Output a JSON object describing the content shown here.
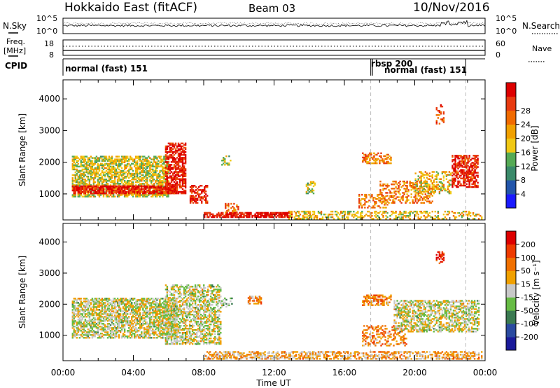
{
  "header": {
    "station": "Hokkaido East (fitACF)",
    "beam": "Beam 03",
    "date": "10/Nov/2016"
  },
  "noise_panel": {
    "left_label": "N.Sky",
    "right_label": "N.Search",
    "y_top_left": "10^5",
    "y_bottom_left": "10^0",
    "y_top_right": "10^5",
    "y_bottom_right": "10^0"
  },
  "freq_panel": {
    "left_label_line1": "Freq.",
    "left_label_line2": "[MHz]",
    "right_label": "Nave",
    "left_ticks": [
      "18",
      "8"
    ],
    "right_ticks": [
      "60",
      "0"
    ]
  },
  "cpid_panel": {
    "label": "CPID",
    "modes": [
      {
        "name": "normal (fast) 151",
        "start": 0.0,
        "end": 17.5
      },
      {
        "name": "rbsp 200",
        "start": 17.5,
        "end": 17.6
      },
      {
        "name": "normal (fast) 151",
        "start": 17.6,
        "end": 22.9
      }
    ]
  },
  "x_axis": {
    "label": "Time UT",
    "ticks": [
      "00:00",
      "04:00",
      "08:00",
      "12:00",
      "16:00",
      "20:00",
      "00:00"
    ]
  },
  "colors": {
    "frame": "#000000",
    "mode_boundary": "#aaaaaa"
  },
  "chart_data": [
    {
      "type": "heatmap",
      "title": "",
      "xlabel": "Time UT",
      "ylabel": "Slant Range [km]",
      "xlim_hours": [
        0,
        24
      ],
      "ylim_km": [
        180,
        4600
      ],
      "y_ticks": [
        "1000",
        "2000",
        "3000",
        "4000"
      ],
      "colorbar": {
        "label": "Power [dB]",
        "ticks": [
          "4",
          "8",
          "12",
          "16",
          "20",
          "24",
          "28"
        ],
        "colors": [
          "#1a1aff",
          "#2255aa",
          "#3a8a6a",
          "#55aa55",
          "#f0c814",
          "#f0a000",
          "#f06a00",
          "#e83a10",
          "#dd0000"
        ]
      },
      "echo_regions": [
        {
          "t0": 0.5,
          "t1": 6.0,
          "r0": 900,
          "r1": 2200,
          "level": 0.5,
          "density": 0.65
        },
        {
          "t0": 0.5,
          "t1": 6.5,
          "r0": 1000,
          "r1": 1250,
          "level": 0.92,
          "density": 0.8
        },
        {
          "t0": 5.8,
          "t1": 7.0,
          "r0": 1000,
          "r1": 2600,
          "level": 0.92,
          "density": 0.65
        },
        {
          "t0": 7.2,
          "t1": 8.2,
          "r0": 700,
          "r1": 1250,
          "level": 0.88,
          "density": 0.6
        },
        {
          "t0": 8.0,
          "t1": 13.0,
          "r0": 250,
          "r1": 420,
          "level": 0.95,
          "density": 0.75
        },
        {
          "t0": 9.2,
          "t1": 10.0,
          "r0": 400,
          "r1": 700,
          "level": 0.75,
          "density": 0.5
        },
        {
          "t0": 12.8,
          "t1": 23.8,
          "r0": 200,
          "r1": 450,
          "level": 0.55,
          "density": 0.4
        },
        {
          "t0": 16.8,
          "t1": 18.4,
          "r0": 550,
          "r1": 1000,
          "level": 0.7,
          "density": 0.35
        },
        {
          "t0": 18.0,
          "t1": 21.0,
          "r0": 700,
          "r1": 1400,
          "level": 0.7,
          "density": 0.4
        },
        {
          "t0": 17.0,
          "t1": 18.6,
          "r0": 1950,
          "r1": 2300,
          "level": 0.7,
          "density": 0.55
        },
        {
          "t0": 20.0,
          "t1": 22.0,
          "r0": 1000,
          "r1": 1700,
          "level": 0.55,
          "density": 0.45
        },
        {
          "t0": 22.1,
          "t1": 23.6,
          "r0": 1200,
          "r1": 2200,
          "level": 0.88,
          "density": 0.6
        },
        {
          "t0": 9.0,
          "t1": 9.6,
          "r0": 1900,
          "r1": 2200,
          "level": 0.45,
          "density": 0.45
        },
        {
          "t0": 13.8,
          "t1": 14.3,
          "r0": 1000,
          "r1": 1400,
          "level": 0.45,
          "density": 0.4
        },
        {
          "t0": 21.2,
          "t1": 21.6,
          "r0": 3200,
          "r1": 3800,
          "level": 0.8,
          "density": 0.35
        }
      ]
    },
    {
      "type": "heatmap",
      "title": "",
      "xlabel": "Time UT",
      "ylabel": "Slant Range [km]",
      "xlim_hours": [
        0,
        24
      ],
      "ylim_km": [
        180,
        4600
      ],
      "y_ticks": [
        "1000",
        "2000",
        "3000",
        "4000"
      ],
      "colorbar": {
        "label": "Velocity [m s⁻¹]",
        "ticks": [
          "200",
          "100",
          "50",
          "15",
          "-15",
          "-50",
          "-100",
          "-200"
        ],
        "colors": [
          "#1a1a9a",
          "#2a4aa0",
          "#3a7a50",
          "#66bb44",
          "#c8c8c8",
          "#f0a000",
          "#f07000",
          "#ee3a00",
          "#dd0000"
        ]
      },
      "echo_regions": [
        {
          "t0": 0.5,
          "t1": 6.5,
          "r0": 900,
          "r1": 2200,
          "level": 0.5,
          "density": 0.65
        },
        {
          "t0": 5.8,
          "t1": 9.0,
          "r0": 700,
          "r1": 2600,
          "level": 0.5,
          "density": 0.55
        },
        {
          "t0": 8.0,
          "t1": 23.8,
          "r0": 220,
          "r1": 450,
          "level": 0.62,
          "density": 0.55
        },
        {
          "t0": 10.5,
          "t1": 11.3,
          "r0": 2000,
          "r1": 2250,
          "level": 0.68,
          "density": 0.55
        },
        {
          "t0": 17.0,
          "t1": 18.6,
          "r0": 1950,
          "r1": 2300,
          "level": 0.7,
          "density": 0.55
        },
        {
          "t0": 17.0,
          "t1": 19.5,
          "r0": 650,
          "r1": 1300,
          "level": 0.7,
          "density": 0.35
        },
        {
          "t0": 18.8,
          "t1": 23.6,
          "r0": 1100,
          "r1": 2100,
          "level": 0.5,
          "density": 0.55
        },
        {
          "t0": 21.2,
          "t1": 21.6,
          "r0": 3300,
          "r1": 3700,
          "level": 0.9,
          "density": 0.45
        },
        {
          "t0": 9.0,
          "t1": 9.6,
          "r0": 1900,
          "r1": 2200,
          "level": 0.4,
          "density": 0.4
        }
      ]
    }
  ]
}
